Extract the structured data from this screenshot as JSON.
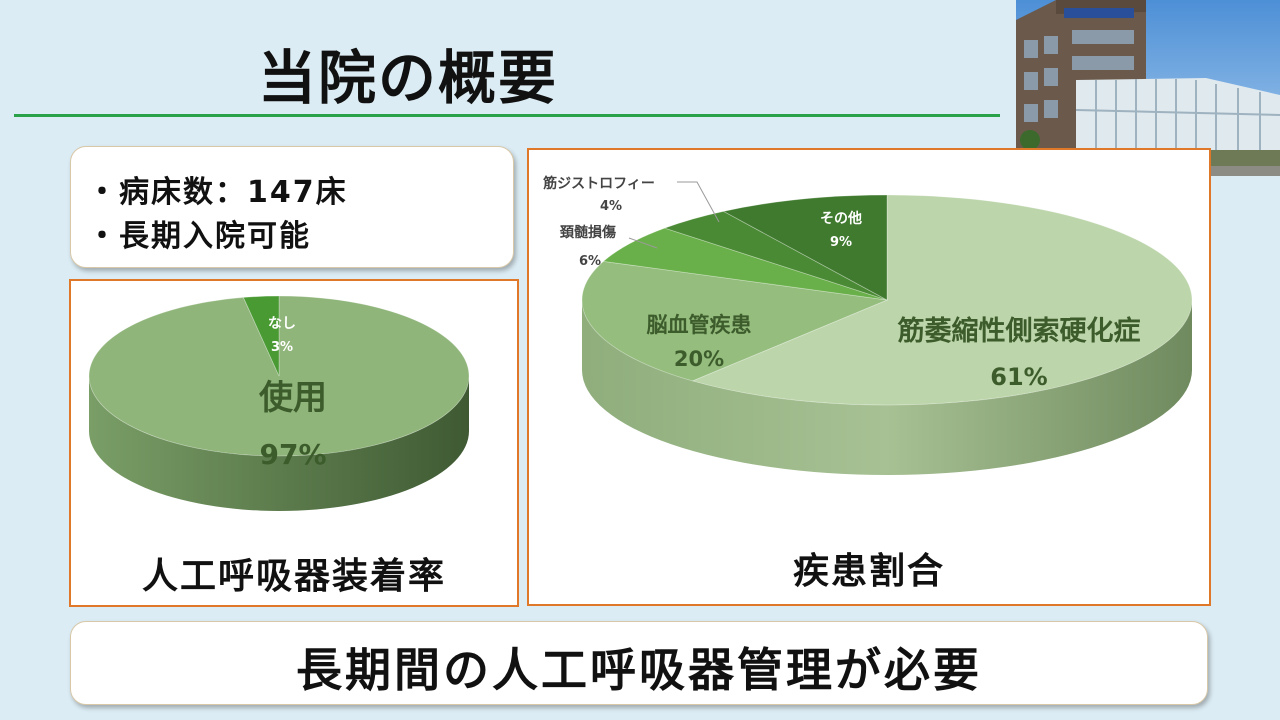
{
  "title": "当院の概要",
  "info": {
    "beds": "・病床数：147床",
    "long_stay": "・長期入院可能"
  },
  "ventilator_chart": {
    "label": "人工呼吸器装着率",
    "slices": [
      {
        "name": "使用",
        "pct_label": "97%",
        "value": 97,
        "color": "#8fb57a"
      },
      {
        "name": "なし",
        "pct_label": "3%",
        "value": 3,
        "color": "#4a9a34"
      }
    ]
  },
  "disease_chart": {
    "label": "疾患割合",
    "slices": [
      {
        "name": "筋萎縮性側索硬化症",
        "pct_label": "61%",
        "value": 61,
        "color": "#bcd5aa"
      },
      {
        "name": "脳血管疾患",
        "pct_label": "20%",
        "value": 20,
        "color": "#95bd7e"
      },
      {
        "name": "頚髄損傷",
        "pct_label": "6%",
        "value": 6,
        "color": "#6ab04a"
      },
      {
        "name": "筋ジストロフィー",
        "pct_label": "4%",
        "value": 4,
        "color": "#4a8a34"
      },
      {
        "name": "その他",
        "pct_label": "9%",
        "value": 9,
        "color": "#3f7a2e"
      }
    ]
  },
  "chart_data": [
    {
      "type": "pie",
      "title": "人工呼吸器装着率",
      "categories": [
        "使用",
        "なし"
      ],
      "values": [
        97,
        3
      ]
    },
    {
      "type": "pie",
      "title": "疾患割合",
      "categories": [
        "筋萎縮性側索硬化症",
        "脳血管疾患",
        "頚髄損傷",
        "筋ジストロフィー",
        "その他"
      ],
      "values": [
        61,
        20,
        6,
        4,
        9
      ]
    }
  ],
  "footer": {
    "message": "長期間の人工呼吸器管理が必要"
  }
}
